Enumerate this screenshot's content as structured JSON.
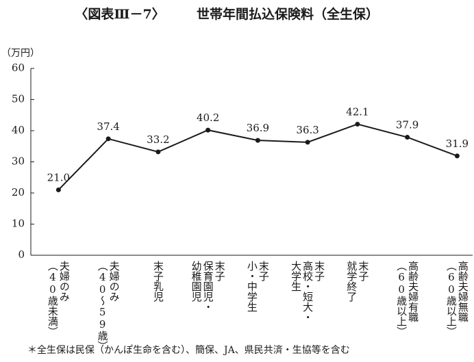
{
  "chart_data": {
    "type": "line",
    "figure_label": "〈図表Ⅲ－7〉",
    "title": "世帯年間払込保険料（全生保）",
    "y_unit": "（万円）",
    "footnote": "＊全生保は民保（かんぽ生命を含む）、簡保、JA、県民共済・生協等を含む",
    "categories": [
      [
        "夫婦のみ",
        "（40歳未満）"
      ],
      [
        "夫婦のみ",
        "（40～59歳）"
      ],
      [
        "末子乳児"
      ],
      [
        "末子",
        "保育園児・",
        "幼稚園児"
      ],
      [
        "末子",
        "小・中学生"
      ],
      [
        "末子",
        "高校・短大・",
        "大学生"
      ],
      [
        "末子",
        "就学終了"
      ],
      [
        "高齢夫婦有職",
        "（60歳以上）"
      ],
      [
        "高齢夫婦無職",
        "（60歳以上）"
      ]
    ],
    "values": [
      21.0,
      37.4,
      33.2,
      40.2,
      36.9,
      36.3,
      42.1,
      37.9,
      31.9
    ],
    "value_labels": [
      "21.0",
      "37.4",
      "33.2",
      "40.2",
      "36.9",
      "36.3",
      "42.1",
      "37.9",
      "31.9"
    ],
    "color": "#1a1a1a",
    "ylim": [
      0,
      60
    ],
    "yticks": [
      0,
      10,
      20,
      30,
      40,
      50,
      60
    ],
    "grid": false
  }
}
